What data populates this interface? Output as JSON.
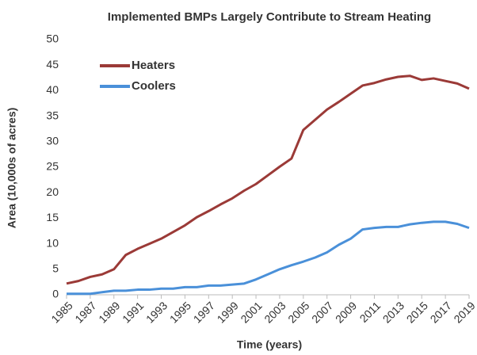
{
  "chart_data": {
    "type": "line",
    "title": "Implemented BMPs Largely Contribute to Stream Heating",
    "x_label": "Time (years)",
    "y_label": "Area (10,000s of acres)",
    "x": [
      1985,
      1986,
      1987,
      1988,
      1989,
      1990,
      1991,
      1992,
      1993,
      1994,
      1995,
      1996,
      1997,
      1998,
      1999,
      2000,
      2001,
      2002,
      2003,
      2004,
      2005,
      2006,
      2007,
      2008,
      2009,
      2010,
      2011,
      2012,
      2013,
      2014,
      2015,
      2016,
      2017,
      2018,
      2019
    ],
    "series": [
      {
        "name": "Heaters",
        "color": "#9b3a37",
        "values": [
          2.2,
          2.7,
          3.5,
          4.0,
          5.0,
          7.8,
          9.0,
          10.0,
          11.0,
          12.3,
          13.6,
          15.2,
          16.4,
          17.7,
          18.9,
          20.4,
          21.7,
          23.4,
          25.1,
          26.7,
          32.3,
          34.3,
          36.3,
          37.8,
          39.4,
          41.0,
          41.5,
          42.2,
          42.7,
          42.9,
          42.1,
          42.4,
          41.9,
          41.4,
          40.4
        ]
      },
      {
        "name": "Coolers",
        "color": "#4a90d9",
        "values": [
          0.2,
          0.2,
          0.2,
          0.5,
          0.8,
          0.8,
          1.0,
          1.0,
          1.2,
          1.2,
          1.5,
          1.5,
          1.8,
          1.8,
          2.0,
          2.2,
          3.0,
          4.0,
          5.0,
          5.8,
          6.5,
          7.3,
          8.3,
          9.8,
          11.0,
          12.8,
          13.1,
          13.3,
          13.3,
          13.8,
          14.1,
          14.3,
          14.3,
          13.9,
          13.1
        ]
      }
    ],
    "xlim": [
      1985,
      2019
    ],
    "xticks": [
      1985,
      1987,
      1989,
      1991,
      1993,
      1995,
      1997,
      1999,
      2001,
      2003,
      2005,
      2007,
      2009,
      2011,
      2013,
      2015,
      2017,
      2019
    ],
    "ylim": [
      0,
      50
    ],
    "yticks": [
      0,
      5,
      10,
      15,
      20,
      25,
      30,
      35,
      40,
      45,
      50
    ],
    "legend": "upper left"
  }
}
